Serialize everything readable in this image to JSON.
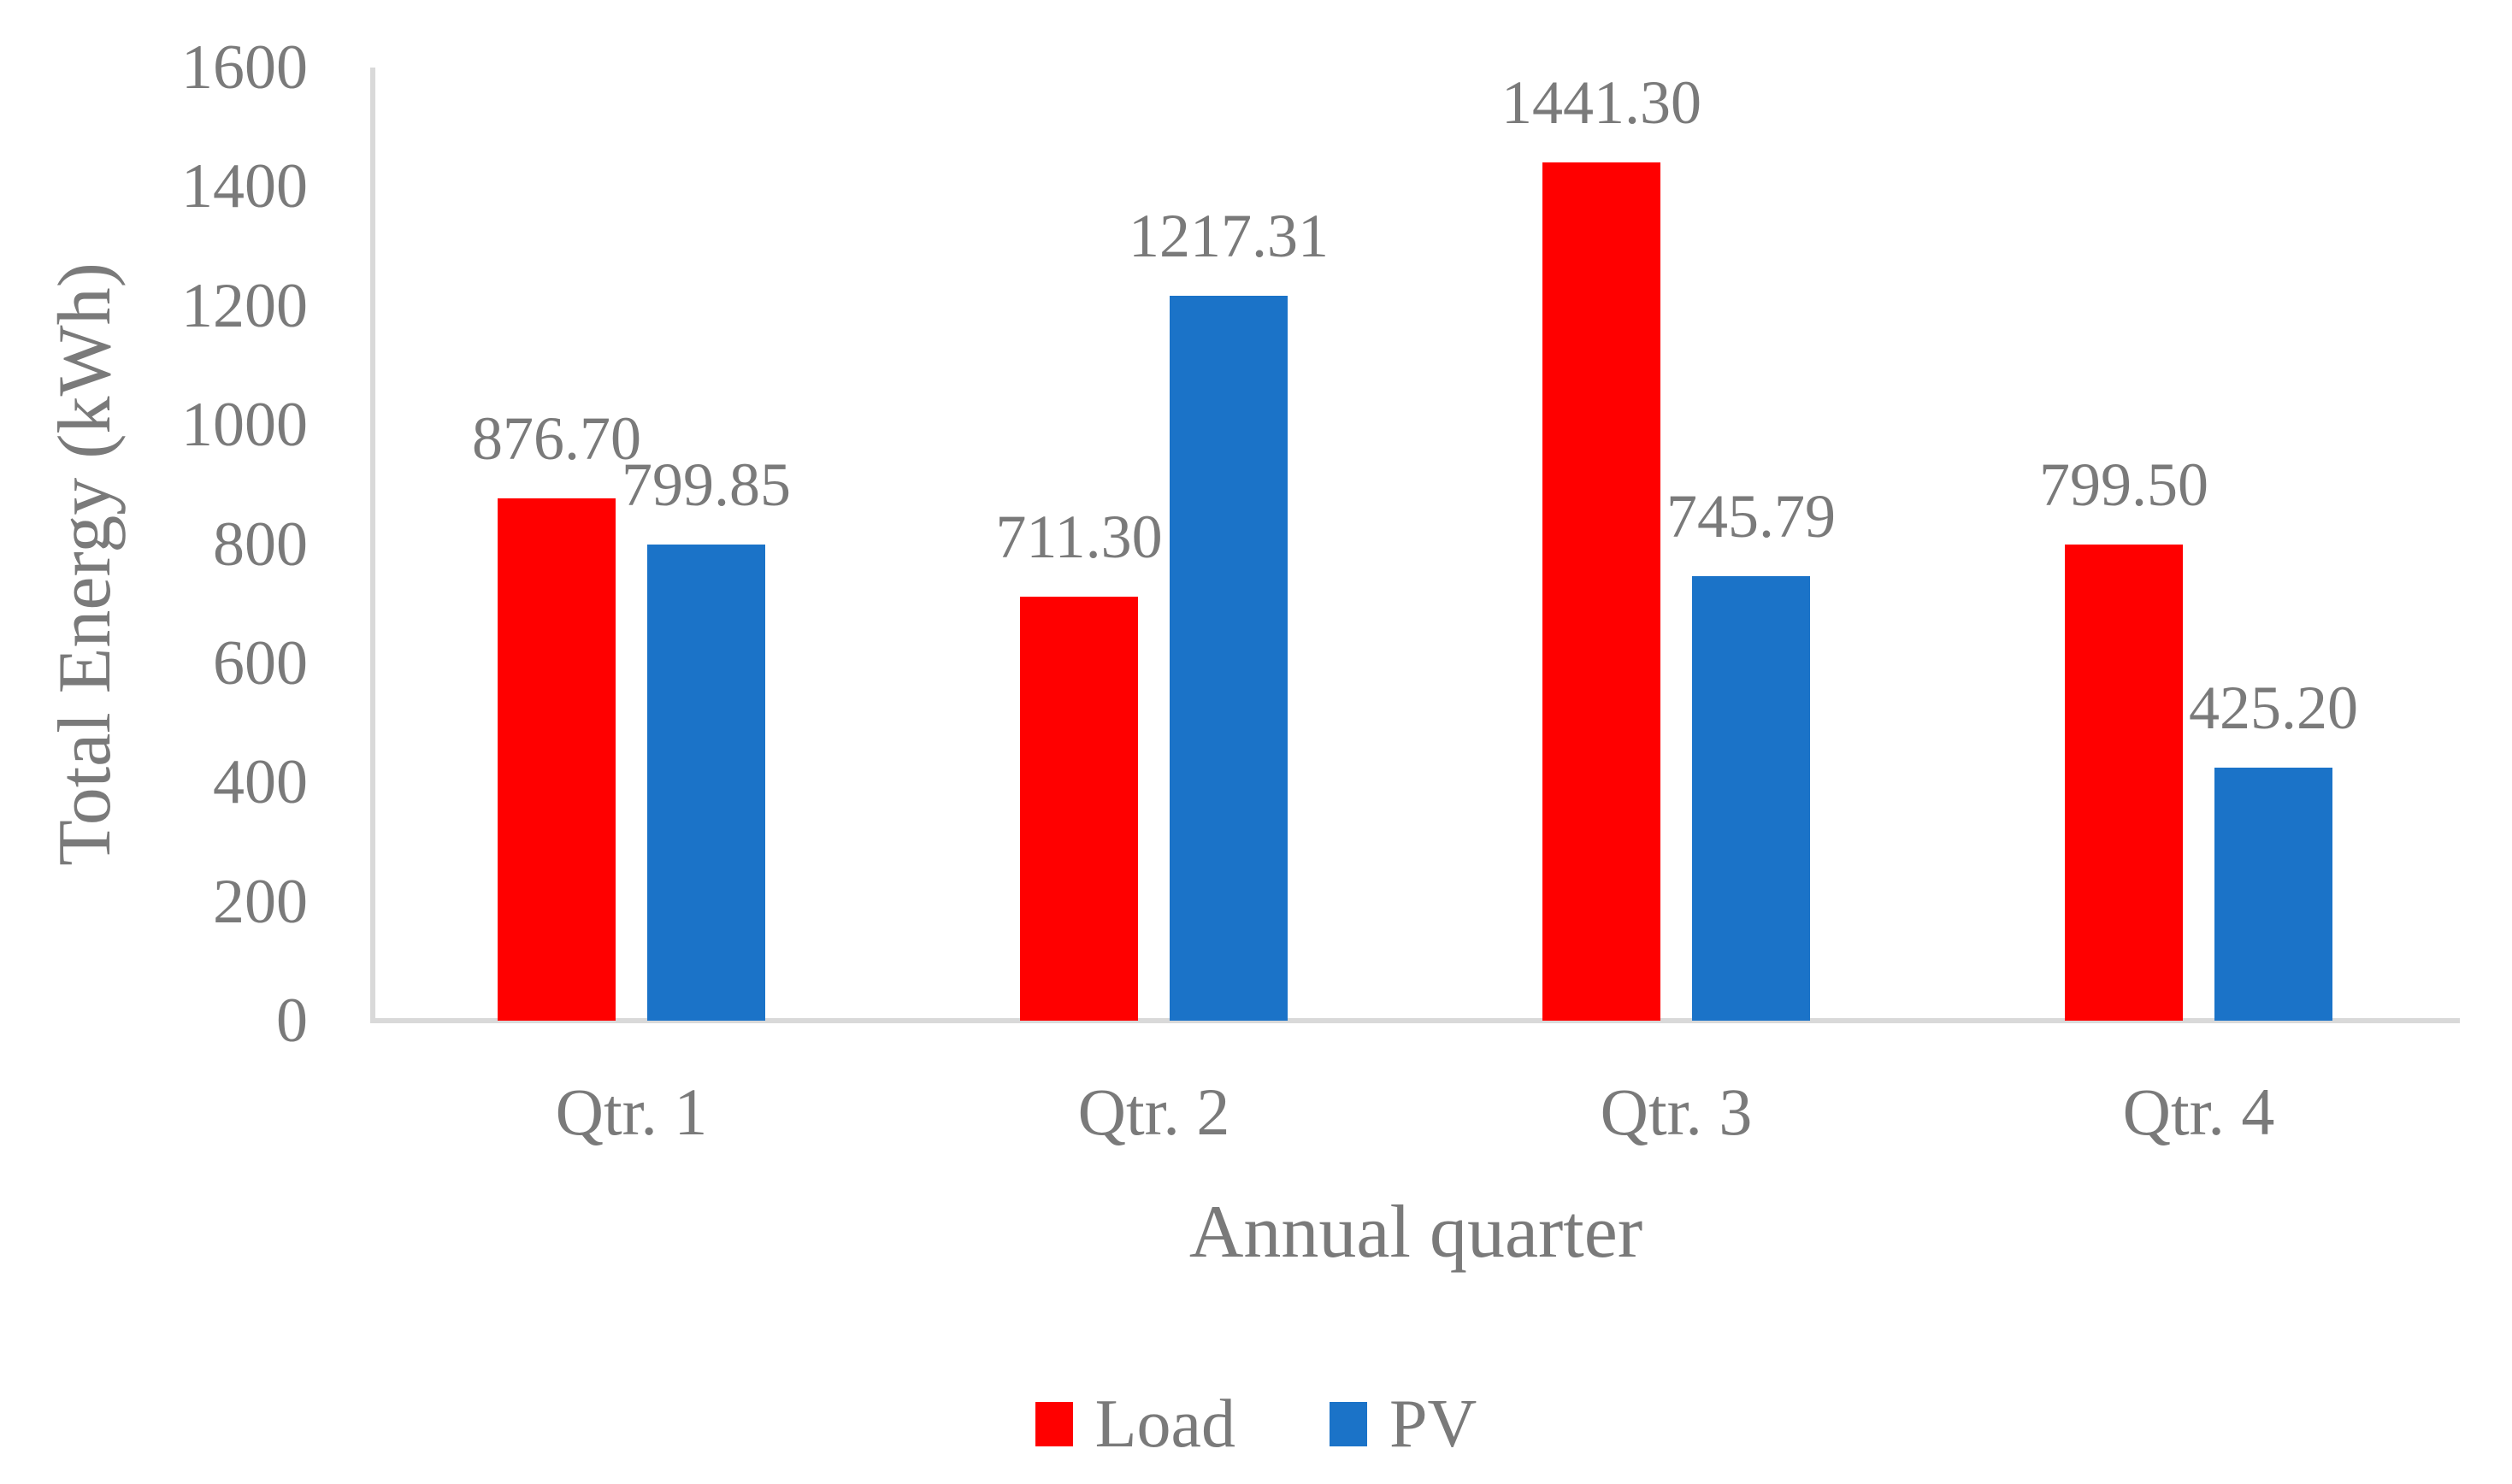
{
  "chart_data": {
    "type": "bar",
    "title": "",
    "xlabel": "Annual quarter",
    "ylabel": "Total Energy (kWh)",
    "categories": [
      "Qtr. 1",
      "Qtr. 2",
      "Qtr. 3",
      "Qtr. 4"
    ],
    "series": [
      {
        "name": "Load",
        "color": "#ff0000",
        "values": [
          876.7,
          711.3,
          1441.3,
          799.5
        ],
        "data_labels": [
          "876.70",
          "711.30",
          "1441.30",
          "799.50"
        ]
      },
      {
        "name": "PV",
        "color": "#1b73c8",
        "values": [
          799.85,
          1217.31,
          745.79,
          425.2
        ],
        "data_labels": [
          "799.85",
          "1217.31",
          "745.79",
          "425.20"
        ]
      }
    ],
    "ylim": [
      0,
      1600
    ],
    "yticks": [
      0,
      200,
      400,
      600,
      800,
      1000,
      1200,
      1400,
      1600
    ],
    "ytick_labels": [
      "0",
      "200",
      "400",
      "600",
      "800",
      "1000",
      "1200",
      "1400",
      "1600"
    ],
    "grid": false,
    "legend_position": "bottom",
    "colors": {
      "load": "#ff0000",
      "pv": "#1b73c8",
      "text": "#7a7a7a",
      "axis_line": "#d9d9d9",
      "background": "#ffffff"
    }
  }
}
